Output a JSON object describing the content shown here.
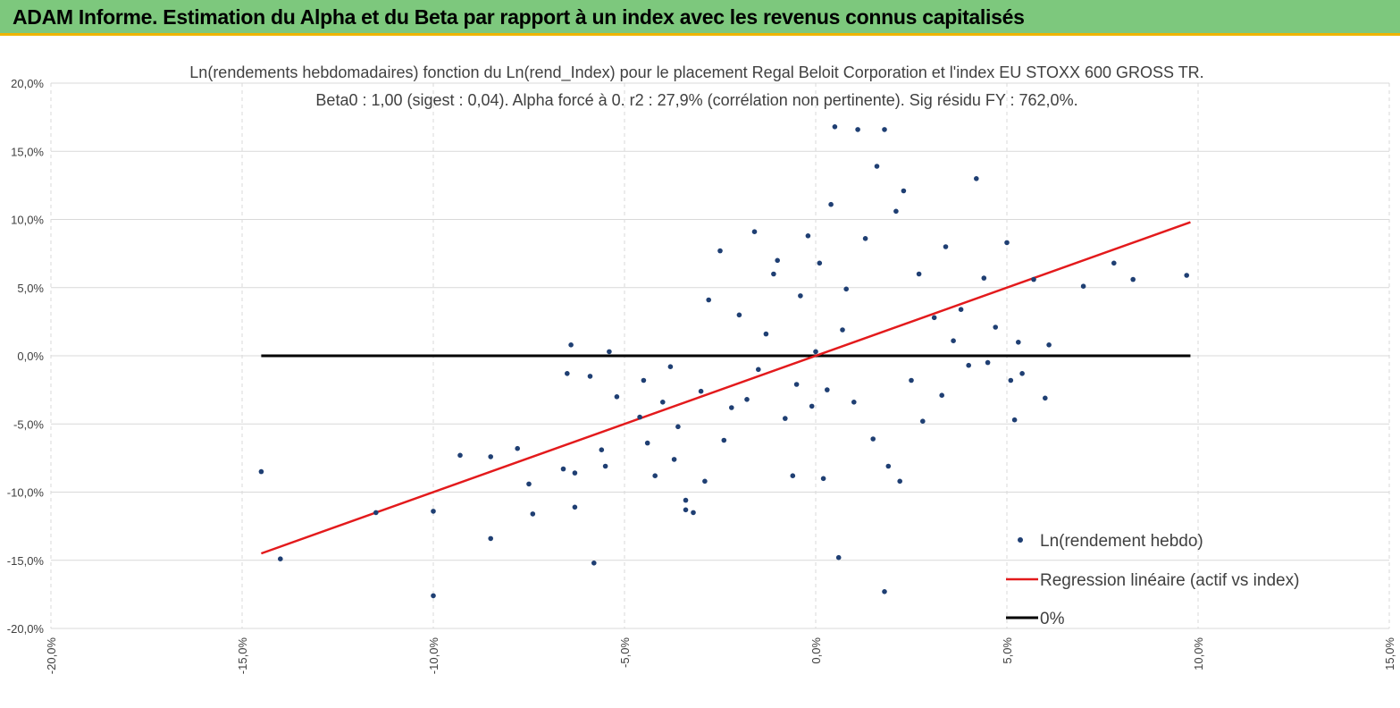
{
  "header": {
    "title": "ADAM Informe. Estimation du Alpha et du Beta par rapport à un index avec les revenus connus capitalisés"
  },
  "chart_data": {
    "type": "scatter",
    "title": "Ln(rendements hebdomadaires) fonction du Ln(rend_Index) pour le placement Regal Beloit Corporation et l'index EU STOXX 600 GROSS TR.",
    "subtitle": "Beta0 : 1,00 (sigest : 0,04). Alpha forcé à 0. r2 : 27,9% (corrélation non pertinente). Sig résidu FY : 762,0%.",
    "xlim": [
      -20,
      15
    ],
    "ylim": [
      -20,
      20
    ],
    "x_ticks": [
      -20,
      -15,
      -10,
      -5,
      0,
      5,
      10,
      15
    ],
    "y_ticks": [
      -20,
      -15,
      -10,
      -5,
      0,
      5,
      10,
      15,
      20
    ],
    "x_tick_labels": [
      "-20,0%",
      "-15,0%",
      "-10,0%",
      "-5,0%",
      "0,0%",
      "5,0%",
      "10,0%",
      "15,0%"
    ],
    "y_tick_labels": [
      "-20,0%",
      "-15,0%",
      "-10,0%",
      "-5,0%",
      "0,0%",
      "5,0%",
      "10,0%",
      "15,0%",
      "20,0%"
    ],
    "grid": true,
    "legend_position": "bottom-right",
    "colors": {
      "points": "#1f3f73",
      "regression": "#e31a1c",
      "zero": "#000000",
      "grid": "#d9d9d9"
    },
    "series": [
      {
        "name": "Ln(rendement hebdo)",
        "kind": "scatter",
        "points": [
          [
            -14.5,
            -8.5
          ],
          [
            -14.0,
            -14.9
          ],
          [
            -11.5,
            -11.5
          ],
          [
            -10.0,
            -11.4
          ],
          [
            -10.0,
            -17.6
          ],
          [
            -9.3,
            -7.3
          ],
          [
            -8.5,
            -7.4
          ],
          [
            -8.5,
            -13.4
          ],
          [
            -7.8,
            -6.8
          ],
          [
            -7.5,
            -9.4
          ],
          [
            -7.4,
            -11.6
          ],
          [
            -6.6,
            -8.3
          ],
          [
            -6.5,
            -1.3
          ],
          [
            -6.4,
            0.8
          ],
          [
            -6.3,
            -11.1
          ],
          [
            -6.3,
            -8.6
          ],
          [
            -5.9,
            -1.5
          ],
          [
            -5.8,
            -15.2
          ],
          [
            -5.6,
            -6.9
          ],
          [
            -5.5,
            -8.1
          ],
          [
            -5.4,
            0.3
          ],
          [
            -5.2,
            -3.0
          ],
          [
            -4.6,
            -4.5
          ],
          [
            -4.5,
            -1.8
          ],
          [
            -4.4,
            -6.4
          ],
          [
            -4.2,
            -8.8
          ],
          [
            -4.0,
            -3.4
          ],
          [
            -3.8,
            -0.8
          ],
          [
            -3.7,
            -7.6
          ],
          [
            -3.6,
            -5.2
          ],
          [
            -3.4,
            -11.3
          ],
          [
            -3.4,
            -10.6
          ],
          [
            -3.2,
            -11.5
          ],
          [
            -3.0,
            -2.6
          ],
          [
            -2.9,
            -9.2
          ],
          [
            -2.8,
            4.1
          ],
          [
            -2.5,
            7.7
          ],
          [
            -2.4,
            -6.2
          ],
          [
            -2.2,
            -3.8
          ],
          [
            -2.0,
            3.0
          ],
          [
            -1.8,
            -3.2
          ],
          [
            -1.6,
            9.1
          ],
          [
            -1.5,
            -1.0
          ],
          [
            -1.3,
            1.6
          ],
          [
            -1.1,
            6.0
          ],
          [
            -1.0,
            7.0
          ],
          [
            -0.8,
            -4.6
          ],
          [
            -0.6,
            -8.8
          ],
          [
            -0.5,
            -2.1
          ],
          [
            -0.4,
            4.4
          ],
          [
            -0.2,
            8.8
          ],
          [
            -0.1,
            -3.7
          ],
          [
            0.0,
            0.3
          ],
          [
            0.1,
            6.8
          ],
          [
            0.2,
            -9.0
          ],
          [
            0.3,
            -2.5
          ],
          [
            0.4,
            11.1
          ],
          [
            0.5,
            16.8
          ],
          [
            0.6,
            -14.8
          ],
          [
            0.7,
            1.9
          ],
          [
            0.8,
            4.9
          ],
          [
            1.0,
            -3.4
          ],
          [
            1.1,
            16.6
          ],
          [
            1.3,
            8.6
          ],
          [
            1.5,
            -6.1
          ],
          [
            1.6,
            13.9
          ],
          [
            1.8,
            16.6
          ],
          [
            1.8,
            -17.3
          ],
          [
            1.9,
            -8.1
          ],
          [
            2.1,
            10.6
          ],
          [
            2.2,
            -9.2
          ],
          [
            2.3,
            12.1
          ],
          [
            2.5,
            -1.8
          ],
          [
            2.7,
            6.0
          ],
          [
            2.8,
            -4.8
          ],
          [
            3.1,
            2.8
          ],
          [
            3.3,
            -2.9
          ],
          [
            3.4,
            8.0
          ],
          [
            3.6,
            1.1
          ],
          [
            3.8,
            3.4
          ],
          [
            4.0,
            -0.7
          ],
          [
            4.2,
            13.0
          ],
          [
            4.4,
            5.7
          ],
          [
            4.5,
            -0.5
          ],
          [
            4.7,
            2.1
          ],
          [
            5.0,
            8.3
          ],
          [
            5.1,
            -1.8
          ],
          [
            5.3,
            1.0
          ],
          [
            5.2,
            -4.7
          ],
          [
            5.4,
            -1.3
          ],
          [
            5.7,
            5.6
          ],
          [
            6.0,
            -3.1
          ],
          [
            6.1,
            0.8
          ],
          [
            7.0,
            5.1
          ],
          [
            7.8,
            6.8
          ],
          [
            8.3,
            5.6
          ],
          [
            9.7,
            5.9
          ]
        ]
      },
      {
        "name": "Regression linéaire (actif vs index)",
        "kind": "line",
        "points": [
          [
            -14.5,
            -14.5
          ],
          [
            9.8,
            9.8
          ]
        ]
      },
      {
        "name": "0%",
        "kind": "line",
        "points": [
          [
            -14.5,
            0
          ],
          [
            9.8,
            0
          ]
        ]
      }
    ]
  }
}
